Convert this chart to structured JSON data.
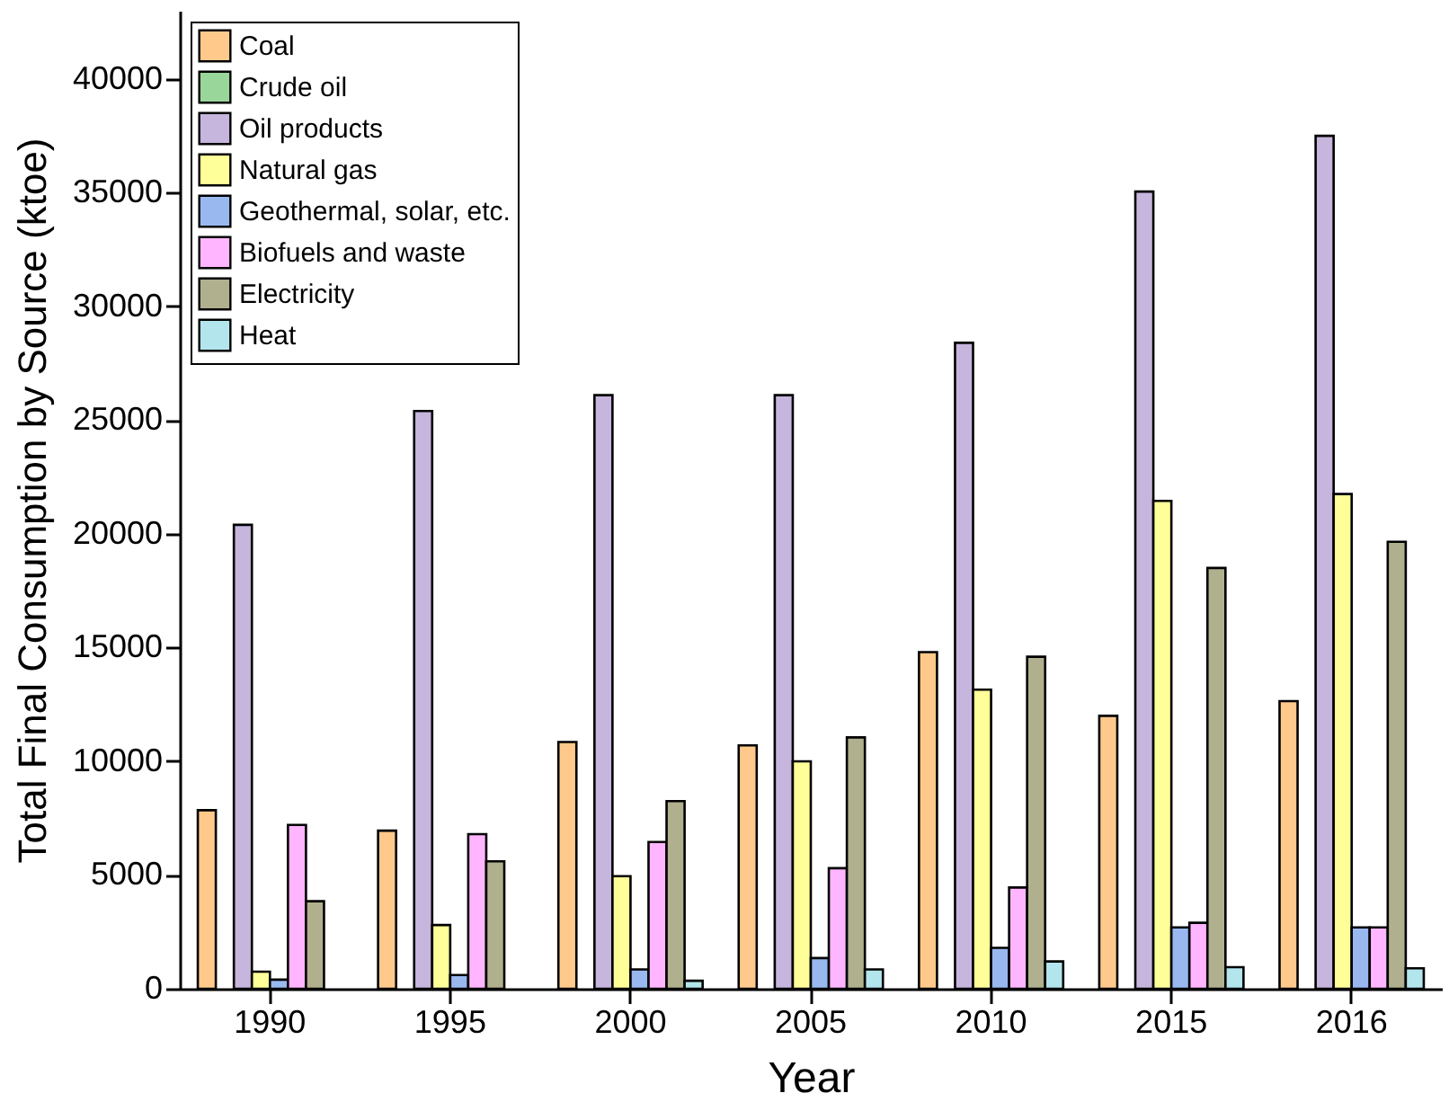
{
  "chart_data": {
    "type": "bar",
    "xlabel": "Year",
    "ylabel": "Total Final Consumption by Source (ktoe)",
    "categories": [
      "1990",
      "1995",
      "2000",
      "2005",
      "2010",
      "2015",
      "2016"
    ],
    "series": [
      {
        "name": "Coal",
        "color": "#ffc98b",
        "values": [
          7850,
          6950,
          10850,
          10700,
          14800,
          12000,
          12650
        ]
      },
      {
        "name": "Crude oil",
        "color": "#99d699",
        "values": [
          0,
          0,
          0,
          0,
          0,
          0,
          0
        ]
      },
      {
        "name": "Oil products",
        "color": "#c6b5dc",
        "values": [
          20400,
          25400,
          26100,
          26100,
          28400,
          35050,
          37500
        ]
      },
      {
        "name": "Natural gas",
        "color": "#ffff99",
        "values": [
          750,
          2800,
          4950,
          10000,
          13150,
          21450,
          21750
        ]
      },
      {
        "name": "Geothermal, solar, etc.",
        "color": "#99b8f0",
        "values": [
          400,
          600,
          850,
          1350,
          1800,
          2700,
          2700
        ]
      },
      {
        "name": "Biofuels and waste",
        "color": "#ffb5ff",
        "values": [
          7200,
          6800,
          6450,
          5300,
          4450,
          2900,
          2700
        ]
      },
      {
        "name": "Electricity",
        "color": "#b0b08e",
        "values": [
          3850,
          5600,
          8250,
          11050,
          14600,
          18500,
          19650
        ]
      },
      {
        "name": "Heat",
        "color": "#b3e6ec",
        "values": [
          0,
          0,
          350,
          850,
          1200,
          950,
          900
        ]
      }
    ],
    "ylim": [
      0,
      43000
    ],
    "yticks": [
      0,
      5000,
      10000,
      15000,
      20000,
      25000,
      30000,
      35000,
      40000
    ],
    "legend": "top left"
  }
}
